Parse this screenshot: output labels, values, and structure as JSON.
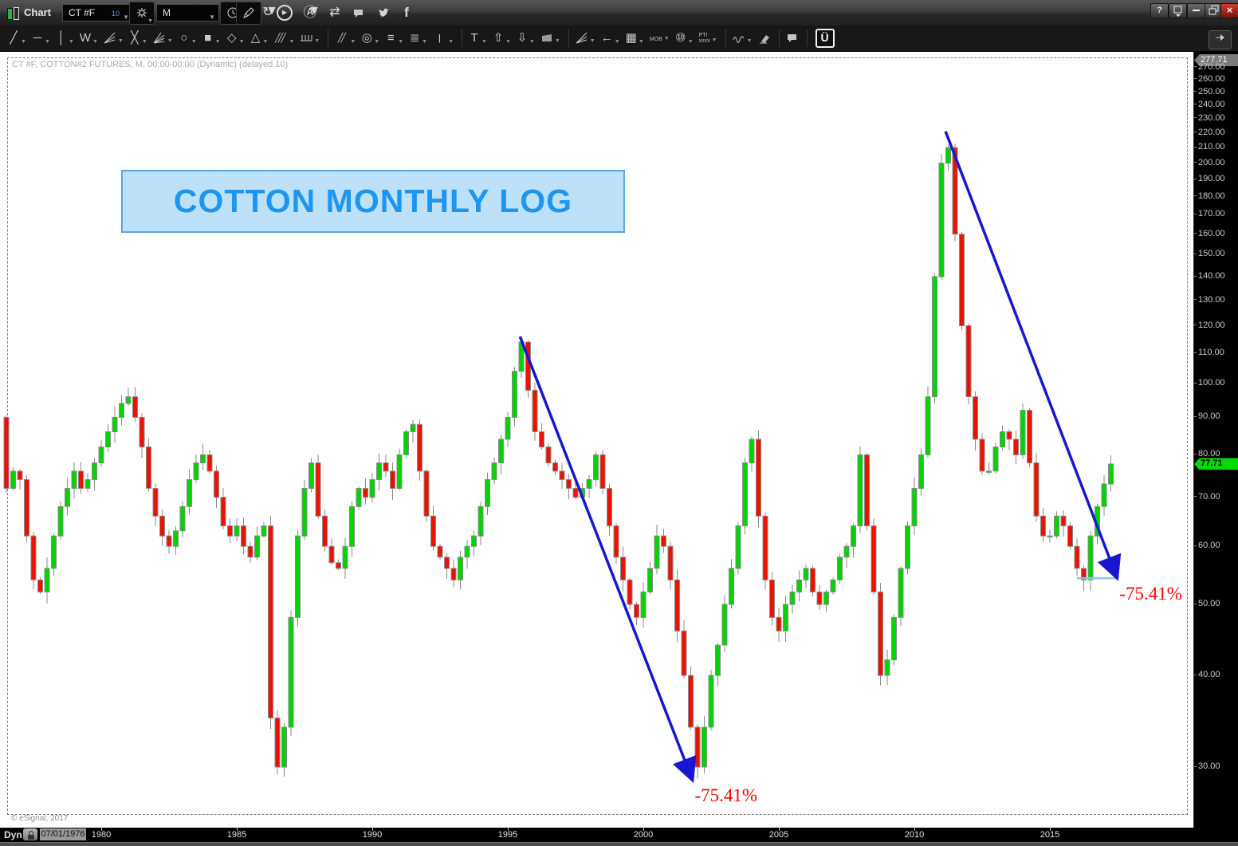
{
  "titlebar": {
    "app_label": "Chart",
    "symbol_value": "CT #F",
    "symbol_badge": "10",
    "interval_value": "M",
    "help_label": "?",
    "close_label": "×",
    "facebook_label": "f"
  },
  "drawbar": {
    "tools": [
      {
        "name": "trendline-tool",
        "glyph": "╱",
        "caret": true
      },
      {
        "name": "horizontal-line-tool",
        "glyph": "─",
        "caret": true
      },
      {
        "name": "vertical-line-tool",
        "glyph": "│",
        "caret": true
      },
      {
        "name": "zigzag-tool",
        "glyph": "W",
        "caret": true
      },
      {
        "name": "fan-lines-tool",
        "icon": "fan",
        "caret": true
      },
      {
        "name": "crossed-lines-tool",
        "glyph": "╳",
        "caret": true
      },
      {
        "name": "gann-fan-tool",
        "icon": "fan2",
        "caret": true
      },
      {
        "name": "ellipse-tool",
        "glyph": "○",
        "caret": true
      },
      {
        "name": "rectangle-tool",
        "glyph": "■",
        "caret": true
      },
      {
        "name": "diamond-tool",
        "glyph": "◇",
        "caret": true
      },
      {
        "name": "triangle-tool",
        "glyph": "△",
        "caret": true
      },
      {
        "name": "parallel-lines-tool",
        "glyph": "╱╱╱",
        "small": true,
        "caret": true
      },
      {
        "name": "cycle-lines-tool",
        "icon": "comb",
        "caret": true
      },
      {
        "name": "separator"
      },
      {
        "name": "parallel-channel-tool",
        "glyph": "╱╱",
        "small": true,
        "caret": true
      },
      {
        "name": "fib-circles-tool",
        "glyph": "◎",
        "caret": true
      },
      {
        "name": "fib-retracement-tool",
        "glyph": "≡",
        "caret": true
      },
      {
        "name": "fib-extension-tool",
        "glyph": "≣",
        "caret": true
      },
      {
        "name": "fib-timezones-tool",
        "glyph": "|||",
        "small": true,
        "caret": true
      },
      {
        "name": "separator"
      },
      {
        "name": "text-tool",
        "glyph": "T",
        "caret": true
      },
      {
        "name": "arrow-up-tool",
        "glyph": "⇧",
        "caret": true
      },
      {
        "name": "arrow-down-tool",
        "glyph": "⇩",
        "caret": true
      },
      {
        "name": "price-label-tool",
        "icon": "trap",
        "caret": true
      },
      {
        "name": "separator"
      },
      {
        "name": "gann-angles-tool",
        "icon": "fan",
        "caret": true
      },
      {
        "name": "arrow-left-tool",
        "glyph": "←",
        "caret": true
      },
      {
        "name": "grid-tool",
        "glyph": "▦",
        "caret": true
      },
      {
        "name": "mob-tool",
        "glyph": "MOB",
        "tiny": true,
        "caret": true
      },
      {
        "name": "ten-circle-tool",
        "glyph": "⑩",
        "caret": true
      },
      {
        "name": "pti-tool",
        "glyph": "PTI\nxxxx",
        "tiny": true,
        "caret": true
      },
      {
        "name": "separator"
      },
      {
        "name": "wave-tool",
        "icon": "wave",
        "caret": true
      },
      {
        "name": "eraser-tool",
        "icon": "eraser"
      },
      {
        "name": "separator"
      },
      {
        "name": "note-tool",
        "icon": "bubble"
      },
      {
        "name": "separator"
      },
      {
        "name": "u-logo",
        "glyph": "Ü",
        "logo": true
      }
    ]
  },
  "chart": {
    "instrument_label": "CT #F, COTTON#2 FUTURES, M, 00:00-00:00 (Dynamic) (delayed 10)",
    "title_box": "COTTON MONTHLY LOG",
    "copyright": "© eSignal, 2017",
    "scale_max_label": "277.71",
    "last_price_label": "77.71"
  },
  "statusbar": {
    "mode_label": "Dyn",
    "date_label": "07/01/1976"
  },
  "colors": {
    "up": "#00d500",
    "down": "#ee1100",
    "wick": "#8a8a8a",
    "arrow_blue": "#1717d0",
    "baseline_blue": "#8cc6ee",
    "label_red": "#ff0000",
    "badge_green": "#00dc00",
    "title_text_blue": "#1e96f0",
    "title_bg_blue": "#bce1f9"
  },
  "chart_data": {
    "type": "candlestick",
    "title": "COTTON MONTHLY LOG",
    "symbol": "CT #F COTTON#2 FUTURES",
    "interval": "Monthly",
    "y_scale": "log",
    "y_ticks": [
      270,
      260,
      250,
      240,
      230,
      220,
      210,
      200,
      190,
      180,
      170,
      160,
      150,
      140,
      130,
      120,
      110,
      100,
      90,
      80,
      70,
      60,
      50,
      40,
      30
    ],
    "y_max": 277.71,
    "last_price": 77.71,
    "x_ticks": [
      1980,
      1985,
      1990,
      1995,
      2000,
      2005,
      2010,
      2015
    ],
    "start_year": 1976.5,
    "step_years": 0.25,
    "first_open": 90,
    "closes": [
      72,
      76,
      74,
      62,
      54,
      52,
      56,
      62,
      68,
      72,
      76,
      72,
      74,
      78,
      82,
      86,
      90,
      94,
      96,
      90,
      82,
      72,
      66,
      62,
      60,
      63,
      68,
      74,
      78,
      80,
      76,
      70,
      64,
      62,
      64,
      60,
      58,
      62,
      64,
      35,
      30,
      34,
      48,
      62,
      72,
      78,
      66,
      60,
      57,
      56,
      60,
      68,
      72,
      70,
      74,
      78,
      76,
      72,
      80,
      86,
      88,
      76,
      66,
      60,
      58,
      56,
      54,
      58,
      60,
      62,
      68,
      74,
      78,
      84,
      90,
      104,
      114,
      98,
      86,
      82,
      78,
      76,
      74,
      72,
      70,
      72,
      74,
      80,
      72,
      64,
      58,
      54,
      50,
      48,
      52,
      56,
      62,
      60,
      54,
      46,
      40,
      34,
      30,
      34,
      40,
      44,
      50,
      56,
      64,
      78,
      84,
      66,
      54,
      48,
      46,
      50,
      52,
      54,
      56,
      52,
      50,
      52,
      54,
      58,
      60,
      64,
      80,
      64,
      52,
      40,
      42,
      48,
      56,
      64,
      72,
      80,
      96,
      140,
      200,
      210,
      160,
      120,
      96,
      84,
      76,
      76,
      82,
      86,
      84,
      80,
      92,
      78,
      66,
      62,
      62,
      66,
      64,
      60,
      56,
      54,
      62,
      68,
      73,
      77.71
    ],
    "annotations": {
      "arrows": [
        {
          "from_year": 1995.45,
          "from_price": 116,
          "to_year": 2001.78,
          "to_price": 29,
          "label": "-75.41%"
        },
        {
          "from_year": 2011.15,
          "from_price": 221,
          "to_year": 2017.45,
          "to_price": 54.7,
          "label": "-75.41%"
        }
      ],
      "baseline": {
        "from_year": 2016.0,
        "to_year": 2017.5,
        "price": 54.3
      }
    }
  }
}
